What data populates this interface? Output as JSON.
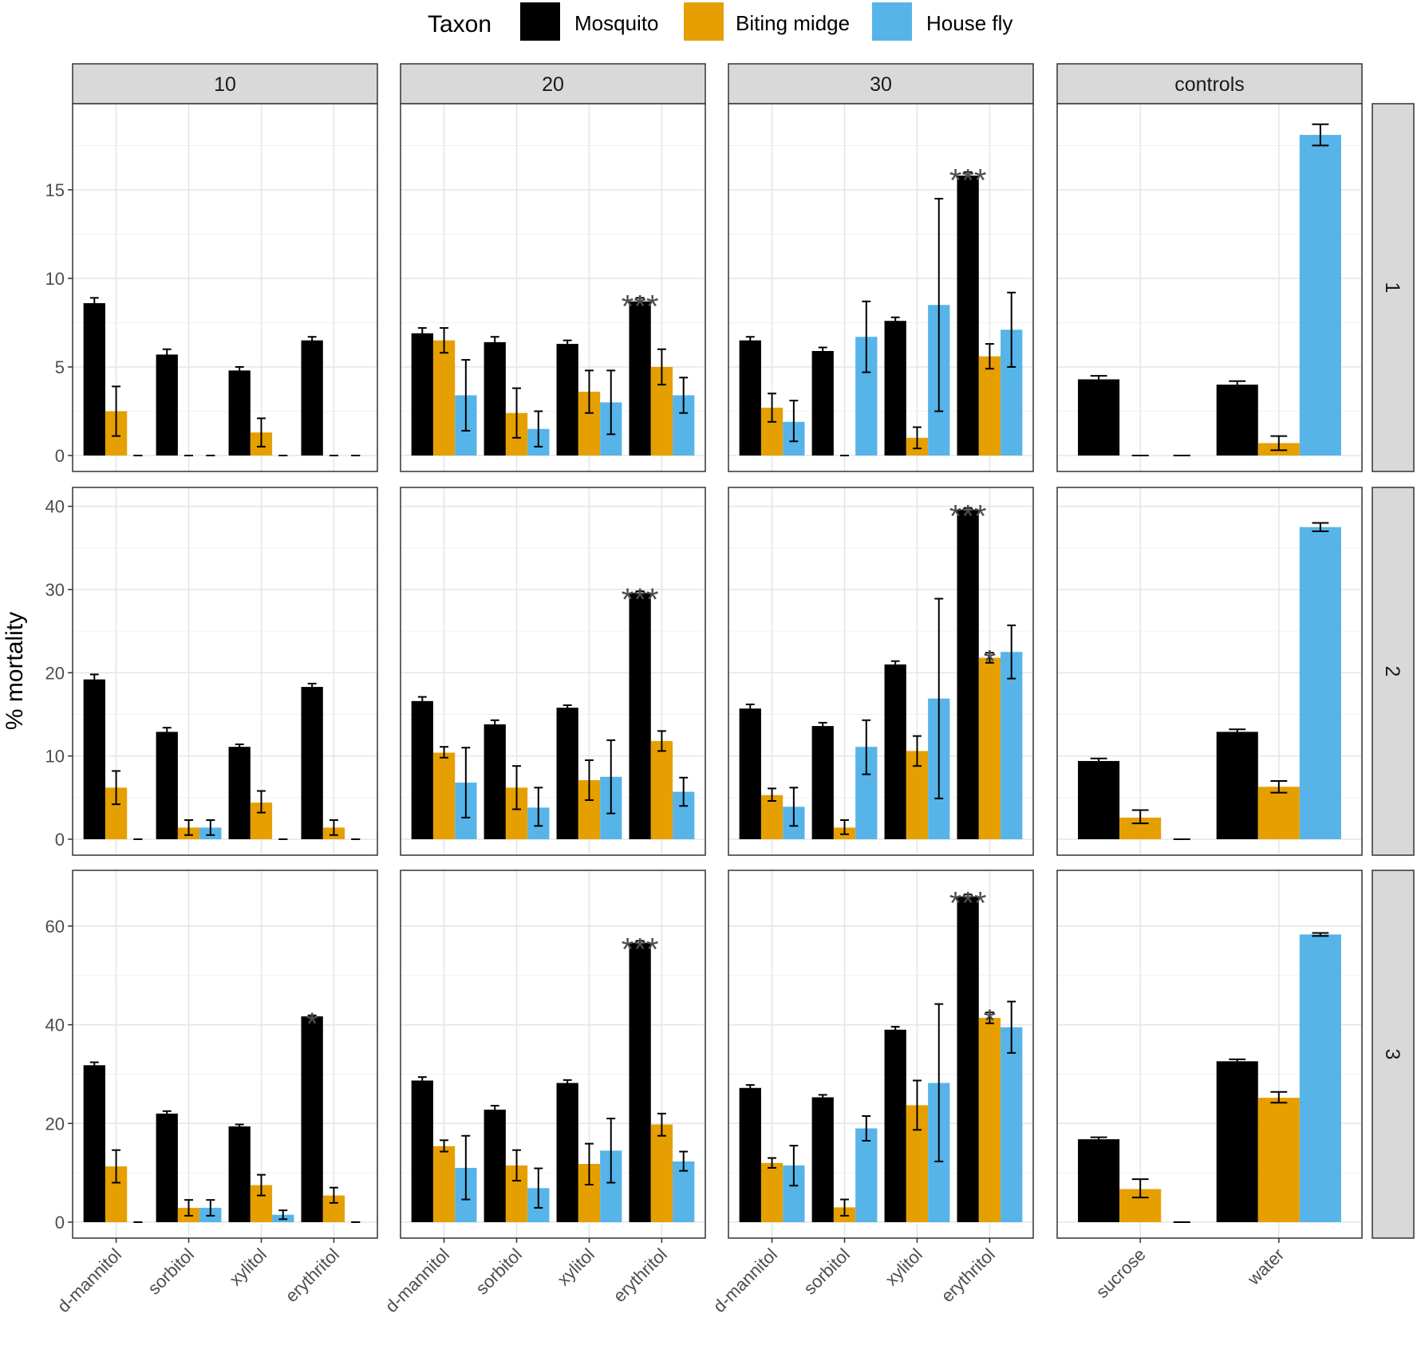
{
  "chart_data": {
    "type": "bar",
    "ylabel": "% mortality",
    "legend": {
      "title": "Taxon",
      "position": "top",
      "items": [
        {
          "name": "Mosquito",
          "color": "#000000"
        },
        {
          "name": "Biting midge",
          "color": "#E69F00"
        },
        {
          "name": "House fly",
          "color": "#56B4E9"
        }
      ]
    },
    "columns": [
      {
        "label": "10",
        "categories": [
          "d-mannitol",
          "sorbitol",
          "xylitol",
          "erythritol"
        ]
      },
      {
        "label": "20",
        "categories": [
          "d-mannitol",
          "sorbitol",
          "xylitol",
          "erythritol"
        ]
      },
      {
        "label": "30",
        "categories": [
          "d-mannitol",
          "sorbitol",
          "xylitol",
          "erythritol"
        ]
      },
      {
        "label": "controls",
        "categories": [
          "sucrose",
          "water"
        ]
      }
    ],
    "rows": [
      {
        "label": "1",
        "ylim": [
          0,
          19.5
        ],
        "yticks": [
          0,
          5,
          10,
          15
        ]
      },
      {
        "label": "2",
        "ylim": [
          0,
          41.5
        ],
        "yticks": [
          0,
          10,
          20,
          30,
          40
        ]
      },
      {
        "label": "3",
        "ylim": [
          0,
          70
        ],
        "yticks": [
          0,
          20,
          40,
          60
        ]
      }
    ],
    "panels": [
      {
        "row": 0,
        "col": 0,
        "bars": [
          [
            {
              "v": 8.6,
              "lo": 8.3,
              "hi": 8.9
            },
            {
              "v": 2.5,
              "lo": 1.1,
              "hi": 3.9
            },
            {
              "v": 0,
              "lo": 0,
              "hi": 0
            }
          ],
          [
            {
              "v": 5.7,
              "lo": 5.5,
              "hi": 6.0
            },
            {
              "v": 0,
              "lo": 0,
              "hi": 0
            },
            {
              "v": 0,
              "lo": 0,
              "hi": 0
            }
          ],
          [
            {
              "v": 4.8,
              "lo": 4.6,
              "hi": 5.0
            },
            {
              "v": 1.3,
              "lo": 0.5,
              "hi": 2.1
            },
            {
              "v": 0,
              "lo": 0,
              "hi": 0
            }
          ],
          [
            {
              "v": 6.5,
              "lo": 6.3,
              "hi": 6.7
            },
            {
              "v": 0,
              "lo": 0,
              "hi": 0
            },
            {
              "v": 0,
              "lo": 0,
              "hi": 0
            }
          ]
        ],
        "sig": []
      },
      {
        "row": 0,
        "col": 1,
        "bars": [
          [
            {
              "v": 6.9,
              "lo": 6.6,
              "hi": 7.2
            },
            {
              "v": 6.5,
              "lo": 5.8,
              "hi": 7.2
            },
            {
              "v": 3.4,
              "lo": 1.4,
              "hi": 5.4
            }
          ],
          [
            {
              "v": 6.4,
              "lo": 6.1,
              "hi": 6.7
            },
            {
              "v": 2.4,
              "lo": 1.0,
              "hi": 3.8
            },
            {
              "v": 1.5,
              "lo": 0.5,
              "hi": 2.5
            }
          ],
          [
            {
              "v": 6.3,
              "lo": 6.1,
              "hi": 6.5
            },
            {
              "v": 3.6,
              "lo": 2.4,
              "hi": 4.8
            },
            {
              "v": 3.0,
              "lo": 1.2,
              "hi": 4.8
            }
          ],
          [
            {
              "v": 8.7,
              "lo": 8.5,
              "hi": 8.9
            },
            {
              "v": 5.0,
              "lo": 4.0,
              "hi": 6.0
            },
            {
              "v": 3.4,
              "lo": 2.4,
              "hi": 4.4
            }
          ]
        ],
        "sig": [
          {
            "cat": 3,
            "taxon": 0,
            "text": "***"
          }
        ]
      },
      {
        "row": 0,
        "col": 2,
        "bars": [
          [
            {
              "v": 6.5,
              "lo": 6.3,
              "hi": 6.7
            },
            {
              "v": 2.7,
              "lo": 1.9,
              "hi": 3.5
            },
            {
              "v": 1.9,
              "lo": 0.8,
              "hi": 3.1
            }
          ],
          [
            {
              "v": 5.9,
              "lo": 5.7,
              "hi": 6.1
            },
            {
              "v": 0,
              "lo": 0,
              "hi": 0
            },
            {
              "v": 6.7,
              "lo": 4.7,
              "hi": 8.7
            }
          ],
          [
            {
              "v": 7.6,
              "lo": 7.4,
              "hi": 7.8
            },
            {
              "v": 1.0,
              "lo": 0.4,
              "hi": 1.6
            },
            {
              "v": 8.5,
              "lo": 2.5,
              "hi": 14.5
            }
          ],
          [
            {
              "v": 15.8,
              "lo": 15.6,
              "hi": 16.0
            },
            {
              "v": 5.6,
              "lo": 4.9,
              "hi": 6.3
            },
            {
              "v": 7.1,
              "lo": 5.0,
              "hi": 9.2
            }
          ]
        ],
        "sig": [
          {
            "cat": 3,
            "taxon": 0,
            "text": "***"
          }
        ]
      },
      {
        "row": 0,
        "col": 3,
        "bars": [
          [
            {
              "v": 4.3,
              "lo": 4.2,
              "hi": 4.5
            },
            {
              "v": 0,
              "lo": 0,
              "hi": 0
            },
            {
              "v": 0,
              "lo": 0,
              "hi": 0
            }
          ],
          [
            {
              "v": 4.0,
              "lo": 3.9,
              "hi": 4.2
            },
            {
              "v": 0.7,
              "lo": 0.3,
              "hi": 1.1
            },
            {
              "v": 18.1,
              "lo": 17.5,
              "hi": 18.7
            }
          ]
        ],
        "sig": []
      },
      {
        "row": 1,
        "col": 0,
        "bars": [
          [
            {
              "v": 19.2,
              "lo": 18.6,
              "hi": 19.8
            },
            {
              "v": 6.2,
              "lo": 4.2,
              "hi": 8.2
            },
            {
              "v": 0,
              "lo": 0,
              "hi": 0
            }
          ],
          [
            {
              "v": 12.9,
              "lo": 12.4,
              "hi": 13.4
            },
            {
              "v": 1.4,
              "lo": 0.5,
              "hi": 2.3
            },
            {
              "v": 1.4,
              "lo": 0.5,
              "hi": 2.3
            }
          ],
          [
            {
              "v": 11.1,
              "lo": 10.8,
              "hi": 11.4
            },
            {
              "v": 4.4,
              "lo": 3.2,
              "hi": 5.8
            },
            {
              "v": 0,
              "lo": 0,
              "hi": 0
            }
          ],
          [
            {
              "v": 18.3,
              "lo": 17.9,
              "hi": 18.7
            },
            {
              "v": 1.4,
              "lo": 0.5,
              "hi": 2.3
            },
            {
              "v": 0,
              "lo": 0,
              "hi": 0
            }
          ]
        ],
        "sig": []
      },
      {
        "row": 1,
        "col": 1,
        "bars": [
          [
            {
              "v": 16.6,
              "lo": 16.1,
              "hi": 17.1
            },
            {
              "v": 10.4,
              "lo": 9.8,
              "hi": 11.1
            },
            {
              "v": 6.8,
              "lo": 2.6,
              "hi": 11.0
            }
          ],
          [
            {
              "v": 13.8,
              "lo": 13.3,
              "hi": 14.3
            },
            {
              "v": 6.2,
              "lo": 3.6,
              "hi": 8.8
            },
            {
              "v": 3.8,
              "lo": 1.6,
              "hi": 6.2
            }
          ],
          [
            {
              "v": 15.8,
              "lo": 15.5,
              "hi": 16.1
            },
            {
              "v": 7.1,
              "lo": 4.7,
              "hi": 9.5
            },
            {
              "v": 7.5,
              "lo": 3.1,
              "hi": 11.9
            }
          ],
          [
            {
              "v": 29.6,
              "lo": 29.4,
              "hi": 29.8
            },
            {
              "v": 11.8,
              "lo": 10.6,
              "hi": 13.0
            },
            {
              "v": 5.7,
              "lo": 4.0,
              "hi": 7.4
            }
          ]
        ],
        "sig": [
          {
            "cat": 3,
            "taxon": 0,
            "text": "***"
          }
        ]
      },
      {
        "row": 1,
        "col": 2,
        "bars": [
          [
            {
              "v": 15.7,
              "lo": 15.2,
              "hi": 16.2
            },
            {
              "v": 5.3,
              "lo": 4.6,
              "hi": 6.1
            },
            {
              "v": 3.9,
              "lo": 1.6,
              "hi": 6.2
            }
          ],
          [
            {
              "v": 13.6,
              "lo": 13.2,
              "hi": 14.0
            },
            {
              "v": 1.4,
              "lo": 0.6,
              "hi": 2.3
            },
            {
              "v": 11.1,
              "lo": 7.8,
              "hi": 14.3
            }
          ],
          [
            {
              "v": 21.0,
              "lo": 20.6,
              "hi": 21.4
            },
            {
              "v": 10.6,
              "lo": 8.8,
              "hi": 12.4
            },
            {
              "v": 16.9,
              "lo": 4.9,
              "hi": 28.9
            }
          ],
          [
            {
              "v": 39.6,
              "lo": 39.4,
              "hi": 39.8
            },
            {
              "v": 21.8,
              "lo": 21.2,
              "hi": 22.4
            },
            {
              "v": 22.5,
              "lo": 19.3,
              "hi": 25.7
            }
          ]
        ],
        "sig": [
          {
            "cat": 3,
            "taxon": 0,
            "text": "***"
          },
          {
            "cat": 3,
            "taxon": 1,
            "text": "*"
          }
        ]
      },
      {
        "row": 1,
        "col": 3,
        "bars": [
          [
            {
              "v": 9.4,
              "lo": 9.1,
              "hi": 9.7
            },
            {
              "v": 2.6,
              "lo": 1.9,
              "hi": 3.5
            },
            {
              "v": 0,
              "lo": 0,
              "hi": 0
            }
          ],
          [
            {
              "v": 12.9,
              "lo": 12.6,
              "hi": 13.2
            },
            {
              "v": 6.3,
              "lo": 5.6,
              "hi": 7.0
            },
            {
              "v": 37.5,
              "lo": 37.0,
              "hi": 38.0
            }
          ]
        ],
        "sig": []
      },
      {
        "row": 2,
        "col": 0,
        "bars": [
          [
            {
              "v": 31.8,
              "lo": 31.2,
              "hi": 32.4
            },
            {
              "v": 11.3,
              "lo": 8.0,
              "hi": 14.6
            },
            {
              "v": 0,
              "lo": 0,
              "hi": 0
            }
          ],
          [
            {
              "v": 22.0,
              "lo": 21.5,
              "hi": 22.5
            },
            {
              "v": 2.9,
              "lo": 1.3,
              "hi": 4.5
            },
            {
              "v": 2.9,
              "lo": 1.3,
              "hi": 4.5
            }
          ],
          [
            {
              "v": 19.4,
              "lo": 19.0,
              "hi": 19.8
            },
            {
              "v": 7.5,
              "lo": 5.4,
              "hi": 9.6
            },
            {
              "v": 1.5,
              "lo": 0.6,
              "hi": 2.4
            }
          ],
          [
            {
              "v": 41.7,
              "lo": 41.5,
              "hi": 41.9
            },
            {
              "v": 5.4,
              "lo": 3.9,
              "hi": 7.0
            },
            {
              "v": 0,
              "lo": 0,
              "hi": 0
            }
          ]
        ],
        "sig": [
          {
            "cat": 3,
            "taxon": 0,
            "text": "*"
          }
        ]
      },
      {
        "row": 2,
        "col": 1,
        "bars": [
          [
            {
              "v": 28.7,
              "lo": 28.0,
              "hi": 29.4
            },
            {
              "v": 15.4,
              "lo": 14.3,
              "hi": 16.6
            },
            {
              "v": 11.0,
              "lo": 4.6,
              "hi": 17.5
            }
          ],
          [
            {
              "v": 22.8,
              "lo": 22.2,
              "hi": 23.6
            },
            {
              "v": 11.5,
              "lo": 8.4,
              "hi": 14.6
            },
            {
              "v": 6.9,
              "lo": 2.9,
              "hi": 10.9
            }
          ],
          [
            {
              "v": 28.2,
              "lo": 27.7,
              "hi": 28.8
            },
            {
              "v": 11.8,
              "lo": 7.6,
              "hi": 15.9
            },
            {
              "v": 14.5,
              "lo": 8.0,
              "hi": 21.0
            }
          ],
          [
            {
              "v": 56.6,
              "lo": 56.2,
              "hi": 57.0
            },
            {
              "v": 19.8,
              "lo": 17.5,
              "hi": 22.0
            },
            {
              "v": 12.3,
              "lo": 10.4,
              "hi": 14.3
            }
          ]
        ],
        "sig": [
          {
            "cat": 3,
            "taxon": 0,
            "text": "***"
          }
        ]
      },
      {
        "row": 2,
        "col": 2,
        "bars": [
          [
            {
              "v": 27.2,
              "lo": 26.6,
              "hi": 27.8
            },
            {
              "v": 12.0,
              "lo": 11.0,
              "hi": 13.0
            },
            {
              "v": 11.5,
              "lo": 7.4,
              "hi": 15.5
            }
          ],
          [
            {
              "v": 25.3,
              "lo": 24.8,
              "hi": 25.8
            },
            {
              "v": 3.0,
              "lo": 1.3,
              "hi": 4.6
            },
            {
              "v": 19.0,
              "lo": 16.5,
              "hi": 21.5
            }
          ],
          [
            {
              "v": 39.0,
              "lo": 38.4,
              "hi": 39.6
            },
            {
              "v": 23.7,
              "lo": 18.7,
              "hi": 28.7
            },
            {
              "v": 28.2,
              "lo": 12.3,
              "hi": 44.2
            }
          ],
          [
            {
              "v": 66.0,
              "lo": 65.6,
              "hi": 66.4
            },
            {
              "v": 41.4,
              "lo": 40.3,
              "hi": 42.5
            },
            {
              "v": 39.5,
              "lo": 34.3,
              "hi": 44.7
            }
          ]
        ],
        "sig": [
          {
            "cat": 3,
            "taxon": 0,
            "text": "***"
          },
          {
            "cat": 3,
            "taxon": 1,
            "text": "*"
          }
        ]
      },
      {
        "row": 2,
        "col": 3,
        "bars": [
          [
            {
              "v": 16.8,
              "lo": 16.4,
              "hi": 17.2
            },
            {
              "v": 6.7,
              "lo": 5.0,
              "hi": 8.7
            },
            {
              "v": 0,
              "lo": 0,
              "hi": 0
            }
          ],
          [
            {
              "v": 32.6,
              "lo": 32.2,
              "hi": 33.0
            },
            {
              "v": 25.2,
              "lo": 24.2,
              "hi": 26.4
            },
            {
              "v": 58.3,
              "lo": 58.0,
              "hi": 58.6
            }
          ]
        ],
        "sig": []
      }
    ]
  }
}
